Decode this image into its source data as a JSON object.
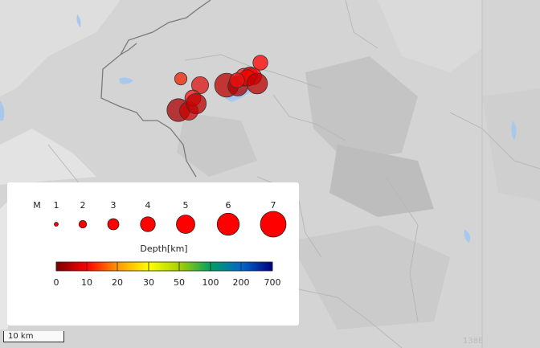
{
  "map": {
    "graticule_label": "138E",
    "scale_label": "10 km"
  },
  "legend": {
    "magnitude_title": "M",
    "magnitudes": [
      "1",
      "2",
      "3",
      "4",
      "5",
      "6",
      "7"
    ],
    "depth_title": "Depth[km]",
    "depth_ticks": [
      "0",
      "10",
      "20",
      "30",
      "50",
      "100",
      "200",
      "700"
    ],
    "depth_colors": [
      "#7a0000",
      "#ff0000",
      "#ff9900",
      "#ffff00",
      "#a6d000",
      "#00a060",
      "#0066cc",
      "#000080"
    ]
  },
  "earthquakes": [
    {
      "depth_color": "#ee2200",
      "magnitude": 3.3
    },
    {
      "depth_color": "#dd1111",
      "magnitude": 4.6
    },
    {
      "depth_color": "#aa0000",
      "magnitude": 6.2
    },
    {
      "depth_color": "#cc0000",
      "magnitude": 5.0
    },
    {
      "depth_color": "#ff1111",
      "magnitude": 4.3
    },
    {
      "depth_color": "#bb0000",
      "magnitude": 5.5
    },
    {
      "depth_color": "#ff1111",
      "magnitude": 4.8
    },
    {
      "depth_color": "#ee0000",
      "magnitude": 4.2
    },
    {
      "depth_color": "#ff0000",
      "magnitude": 4.0
    },
    {
      "depth_color": "#bb0000",
      "magnitude": 6.5
    },
    {
      "depth_color": "#aa0000",
      "magnitude": 5.4
    },
    {
      "depth_color": "#ff0000",
      "magnitude": 4.5
    },
    {
      "depth_color": "#ff0000",
      "magnitude": 4.4
    },
    {
      "depth_color": "#bb0000",
      "magnitude": 5.6
    },
    {
      "depth_color": "#ee1111",
      "magnitude": 4.0
    }
  ]
}
